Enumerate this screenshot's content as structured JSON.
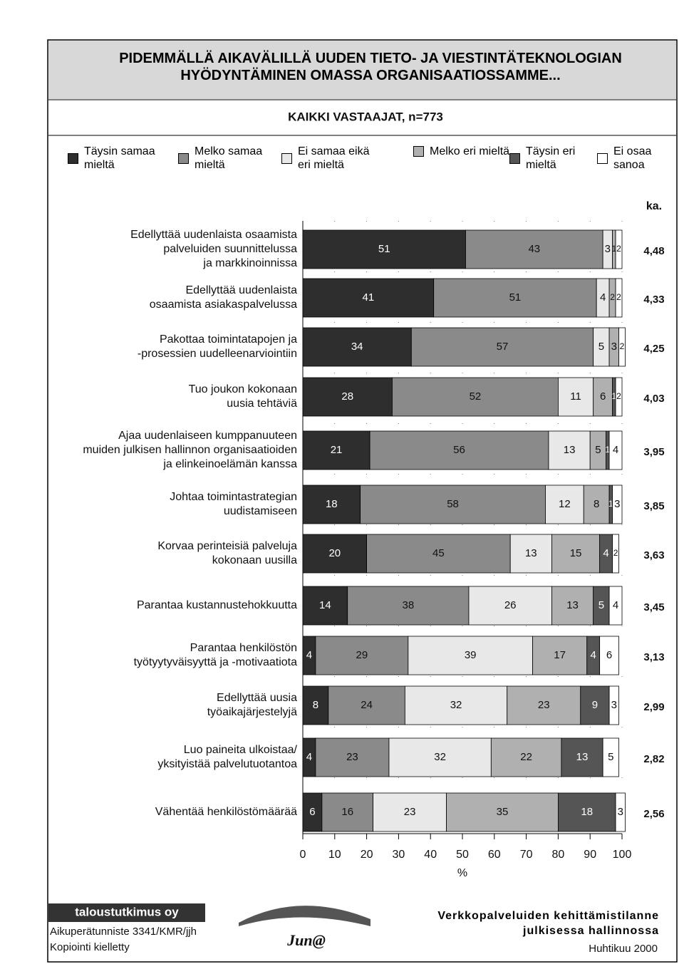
{
  "header": {
    "title": "PIDEMMÄLLÄ AIKAVÄLILLÄ UUDEN TIETO- JA VIESTINTÄTEKNOLOGIAN HYÖDYNTÄMINEN OMASSA ORGANISAATIOSSAMME..."
  },
  "chart_data": {
    "type": "stacked-bar-horizontal",
    "subtitle": "KAIKKI VASTAAJAT, n=773",
    "categories": [
      [
        "Edellyttää uudenlaista osaamista",
        "palveluiden suunnittelussa",
        "ja markkinoinnissa"
      ],
      [
        "Edellyttää uudenlaista",
        "osaamista asiakaspalvelussa"
      ],
      [
        "Pakottaa toimintatapojen ja",
        "-prosessien uudelleenarviointiin"
      ],
      [
        "Tuo joukon kokonaan",
        "uusia tehtäviä"
      ],
      [
        "Ajaa uudenlaiseen kumppanuuteen",
        "muiden julkisen hallinnon organisaatioiden",
        "ja elinkeinoelämän kanssa"
      ],
      [
        "Johtaa toimintastrategian",
        "uudistamiseen"
      ],
      [
        "Korvaa perinteisiä palveluja",
        "kokonaan uusilla"
      ],
      [
        "Parantaa kustannustehokkuutta"
      ],
      [
        "Parantaa henkilöstön",
        "työtyytyväisyyttä ja -motivaatiota"
      ],
      [
        "Edellyttää uusia",
        "työaikajärjestelyjä"
      ],
      [
        "Luo paineita ulkoistaa/",
        "yksityistää palvelutuotantoa"
      ],
      [
        "Vähentää henkilöstömäärää"
      ]
    ],
    "series": [
      {
        "name": "Täysin samaa mieltä",
        "color": "#2e2e2e",
        "values": [
          51,
          41,
          34,
          28,
          21,
          18,
          20,
          14,
          4,
          8,
          4,
          6
        ]
      },
      {
        "name": "Melko samaa mieltä",
        "color": "#8a8a8a",
        "values": [
          43,
          51,
          57,
          52,
          56,
          58,
          45,
          38,
          29,
          24,
          23,
          16
        ]
      },
      {
        "name": "Ei samaa eikä eri mieltä",
        "color": "#e8e8e8",
        "values": [
          3,
          4,
          5,
          11,
          13,
          12,
          13,
          26,
          39,
          32,
          32,
          23
        ]
      },
      {
        "name": "Melko eri mieltä",
        "color": "#b0b0b0",
        "values": [
          1,
          2,
          3,
          6,
          5,
          8,
          15,
          13,
          17,
          23,
          22,
          35
        ]
      },
      {
        "name": "Täysin eri mieltä",
        "color": "#555555",
        "values": [
          0,
          0,
          0,
          1,
          1,
          1,
          4,
          5,
          4,
          9,
          13,
          18
        ]
      },
      {
        "name": "Ei osaa sanoa",
        "color": "#ffffff",
        "values": [
          2,
          2,
          2,
          2,
          4,
          3,
          2,
          4,
          6,
          3,
          5,
          3
        ]
      }
    ],
    "average_title": "ka.",
    "averages": [
      4.48,
      4.33,
      4.25,
      4.03,
      3.95,
      3.85,
      3.63,
      3.45,
      3.13,
      2.99,
      2.82,
      2.56
    ],
    "average_labels": [
      "4,48",
      "4,33",
      "4,25",
      "4,03",
      "3,95",
      "3,85",
      "3,63",
      "3,45",
      "3,13",
      "2,99",
      "2,82",
      "2,56"
    ],
    "xlim": [
      0,
      100
    ],
    "xticks": [
      0,
      10,
      20,
      30,
      40,
      50,
      60,
      70,
      80,
      90,
      100
    ],
    "xlabel": "%"
  },
  "footer": {
    "brand": "taloustutkimus oy",
    "source": "Aikuperätunniste 3341/KMR/jjh",
    "copyright": "Kopiointi kielletty",
    "logo": "Jun@",
    "report": "Verkkopalveluiden kehittämistilanne julkisessa hallinnossa",
    "date": "Huhtikuu 2000"
  }
}
